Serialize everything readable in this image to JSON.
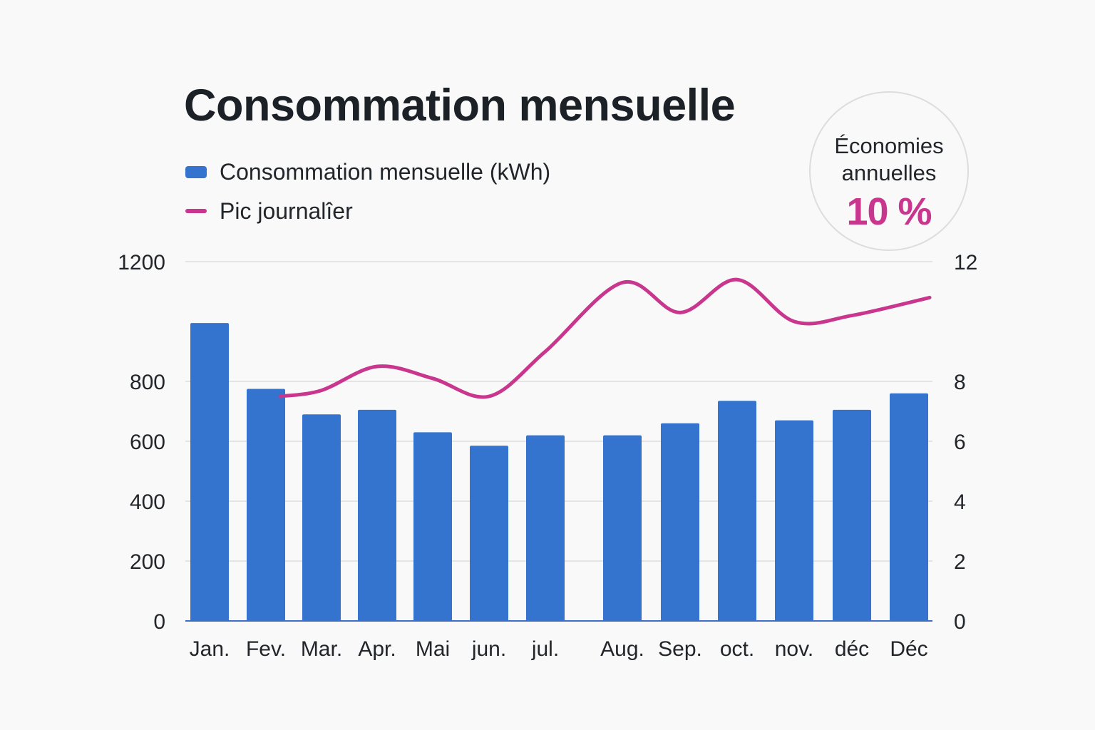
{
  "title": "Consommation mensuelle",
  "legend": {
    "bars_label": "Consommation mensuelle (kWh)",
    "line_label": "Pic journalîer"
  },
  "badge": {
    "label": "Économies annuelles",
    "value": "10 %"
  },
  "colors": {
    "bars": "#3474cf",
    "line": "#c9368e",
    "axis": "#3b6fc8",
    "grid": "#e4e4e4"
  },
  "chart_data": {
    "type": "bar",
    "title": "Consommation mensuelle",
    "categories": [
      "Jan.",
      "Fev.",
      "Mar.",
      "Apr.",
      "Mai",
      "jun.",
      "jul.",
      "Aug.",
      "Sep.",
      "oct.",
      "nov.",
      "déc",
      "Déc"
    ],
    "series": [
      {
        "name": "Consommation mensuelle (kWh)",
        "type": "bar",
        "axis": "left",
        "values": [
          995,
          775,
          690,
          705,
          630,
          585,
          620,
          620,
          660,
          735,
          670,
          705,
          760
        ]
      },
      {
        "name": "Pic journalîer",
        "type": "line",
        "axis": "right",
        "smooth": true,
        "values": [
          null,
          7.5,
          7.7,
          8.5,
          8.1,
          7.5,
          9.0,
          11.3,
          10.3,
          11.4,
          10.0,
          10.2,
          10.8
        ]
      }
    ],
    "left_axis": {
      "ticks": [
        0,
        200,
        400,
        600,
        800,
        1200
      ],
      "ylim": [
        0,
        1200
      ]
    },
    "right_axis": {
      "ticks": [
        0,
        2,
        4,
        6,
        8,
        12
      ],
      "ylim": [
        0,
        12
      ]
    },
    "grid": true,
    "legend_position": "top-left"
  }
}
